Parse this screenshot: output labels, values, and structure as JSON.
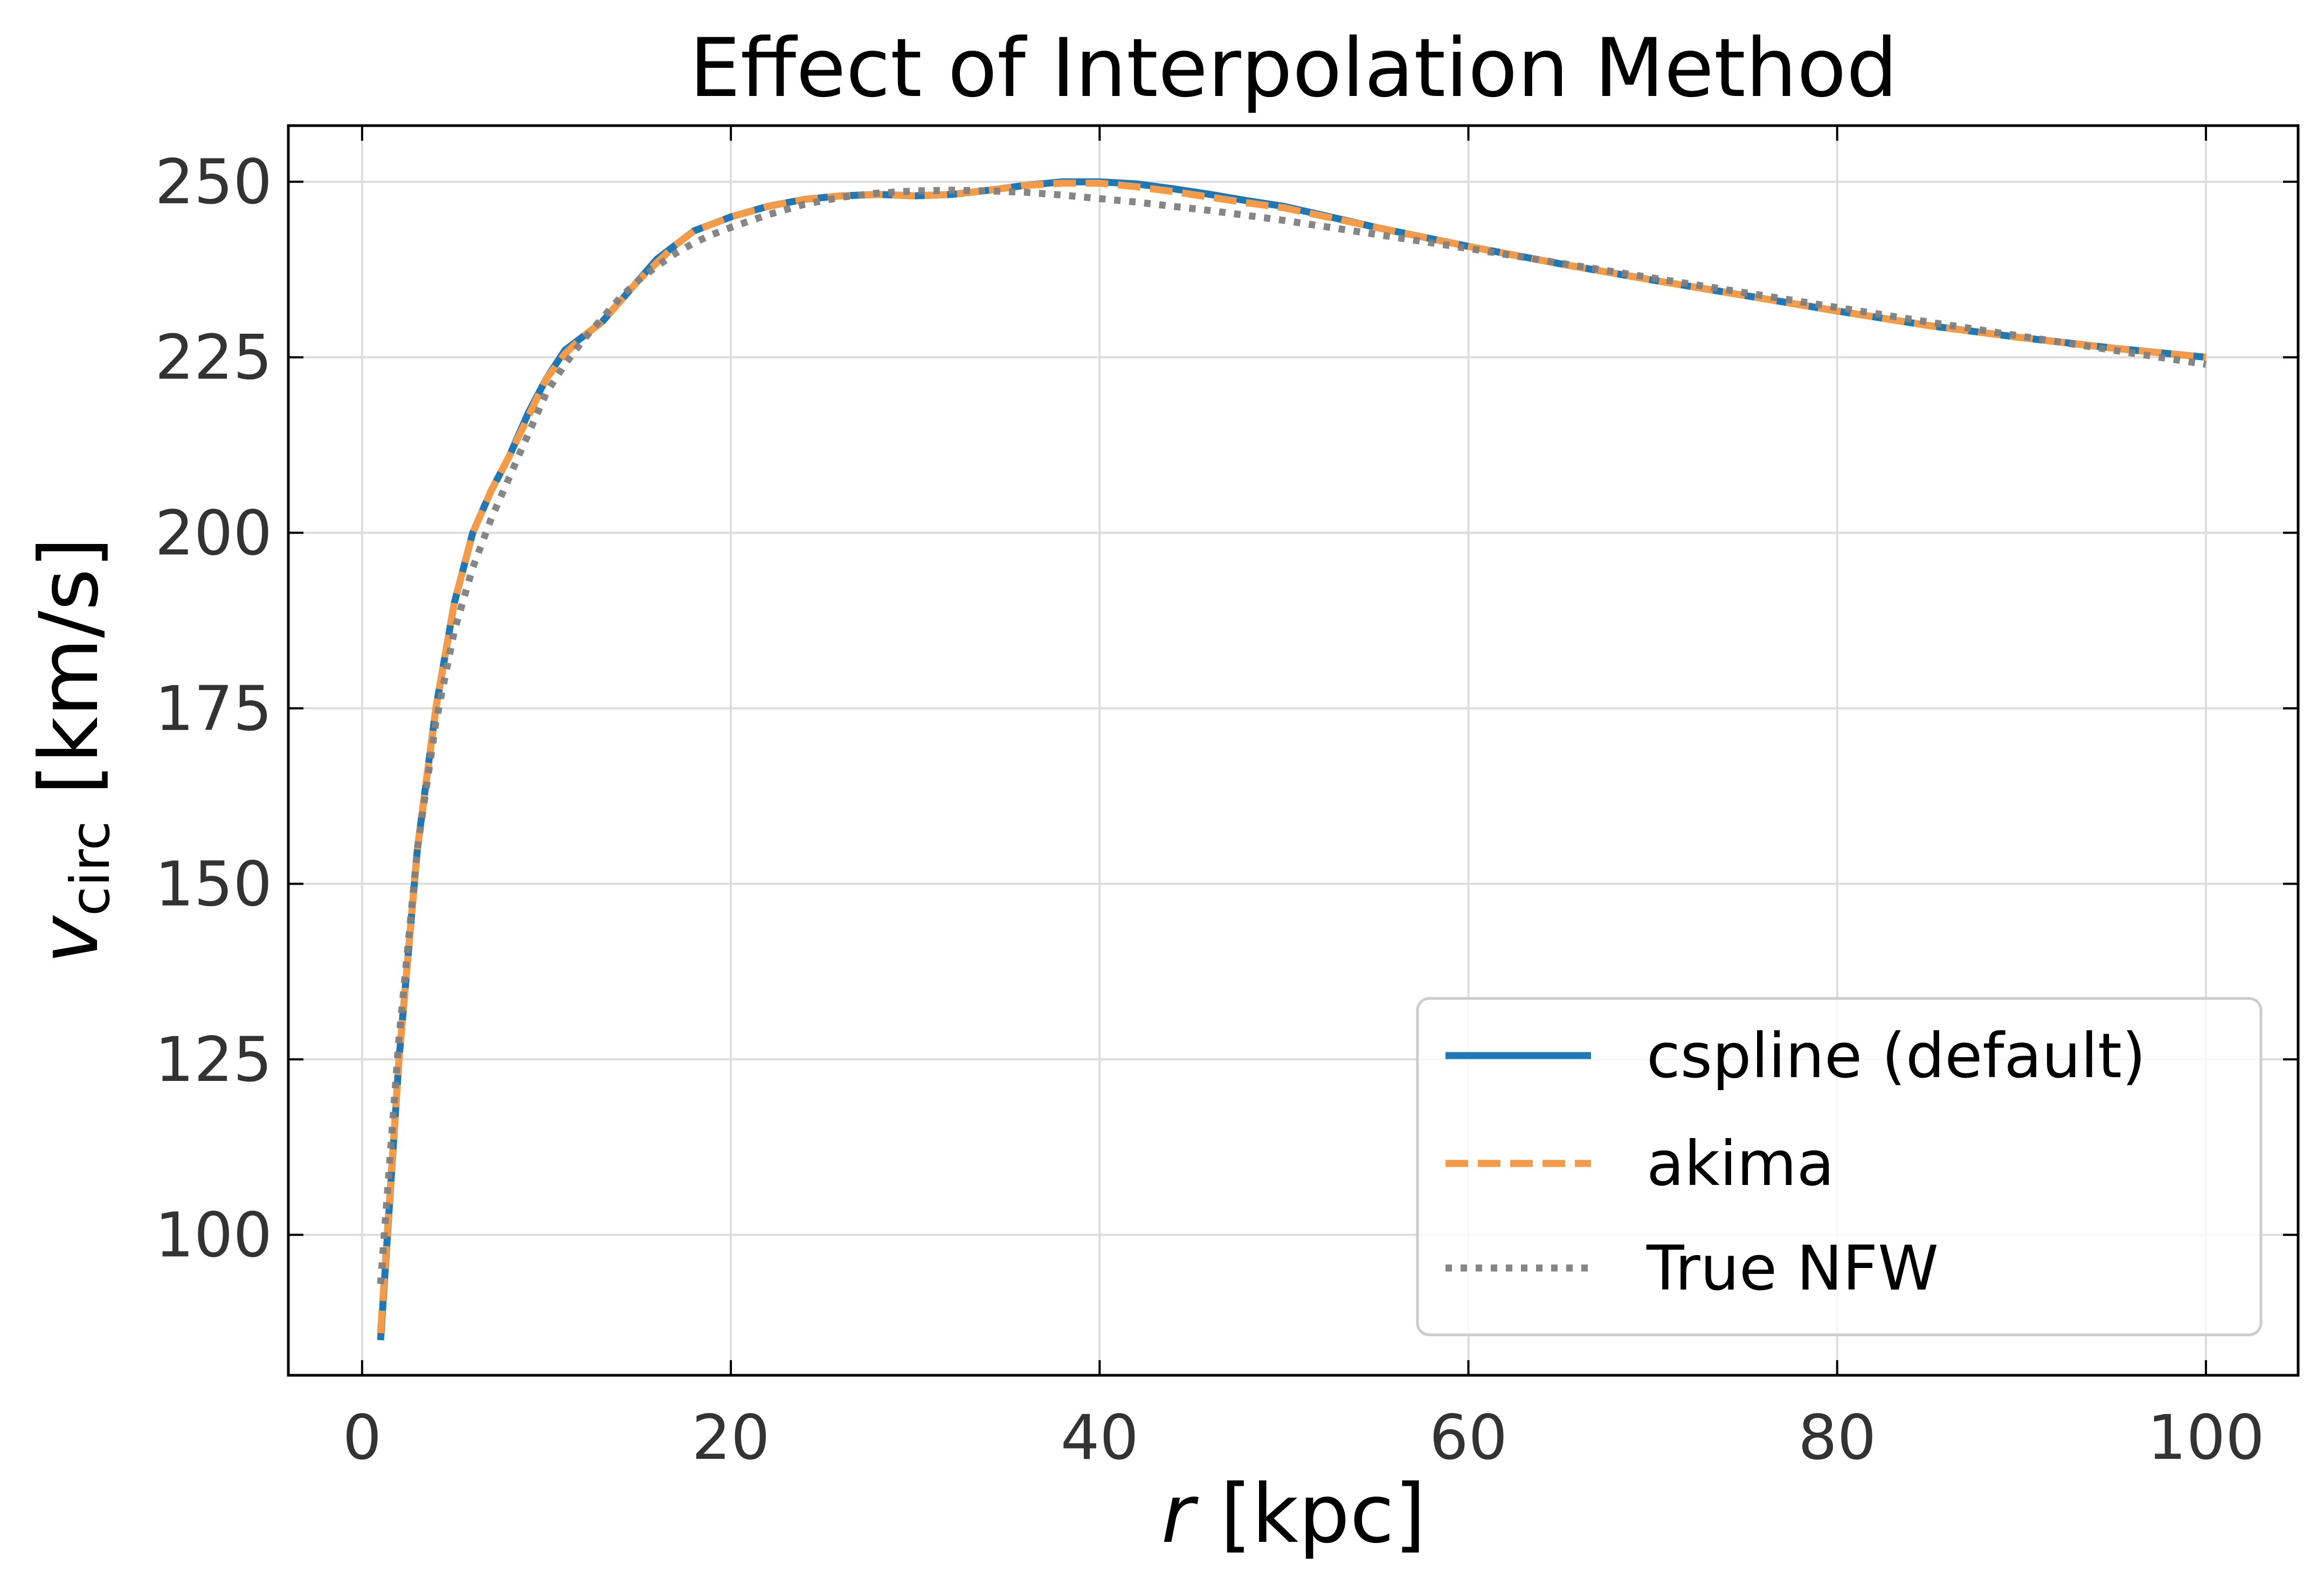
{
  "chart_data": {
    "type": "line",
    "title": "Effect of Interpolation Method",
    "xlabel": {
      "var": "r",
      "unit": " [kpc]"
    },
    "ylabel": {
      "var": "v",
      "sub": "circ",
      "unit": " [km/s]"
    },
    "xlim": [
      -4,
      105
    ],
    "ylim": [
      80,
      258
    ],
    "xticks": [
      0,
      20,
      40,
      60,
      80,
      100
    ],
    "yticks": [
      100,
      125,
      150,
      175,
      200,
      225,
      250
    ],
    "grid": true,
    "legend_position": "lower-right",
    "series": [
      {
        "name": "cspline (default)",
        "color": "#1f77b4",
        "style": "solid",
        "x": [
          1,
          2,
          3,
          4,
          5,
          6,
          7,
          8,
          9,
          10,
          11,
          12,
          13,
          14,
          15,
          16,
          17,
          18,
          19,
          20,
          22,
          24,
          26,
          28,
          30,
          32,
          34,
          36,
          38,
          40,
          42,
          44,
          46,
          48,
          50,
          55,
          60,
          65,
          70,
          75,
          80,
          85,
          90,
          95,
          100
        ],
        "y": [
          85,
          125,
          155,
          175,
          190,
          200,
          206,
          211,
          217,
          222,
          226,
          228,
          230,
          233,
          236,
          239,
          241,
          243,
          244,
          245,
          246.5,
          247.5,
          248,
          248.2,
          248,
          248.2,
          248.8,
          249.5,
          250,
          250,
          249.7,
          249,
          248.2,
          247.3,
          246.5,
          243.5,
          240.8,
          238.3,
          236,
          233.8,
          231.6,
          229.5,
          227.8,
          226.3,
          225
        ]
      },
      {
        "name": "akima",
        "color": "#f39b48",
        "style": "dashed",
        "x": [
          1,
          2,
          3,
          4,
          5,
          6,
          7,
          8,
          9,
          10,
          11,
          12,
          13,
          14,
          15,
          16,
          17,
          18,
          19,
          20,
          22,
          24,
          26,
          28,
          30,
          32,
          34,
          36,
          38,
          40,
          42,
          44,
          46,
          48,
          50,
          55,
          60,
          65,
          70,
          75,
          80,
          85,
          90,
          95,
          100
        ],
        "y": [
          86,
          125,
          155,
          175,
          190,
          200,
          206,
          211,
          216.5,
          222,
          225.5,
          228,
          230,
          233,
          236,
          238.5,
          241,
          243,
          244,
          245,
          246.5,
          247.5,
          248,
          248.2,
          248,
          248.2,
          248.8,
          249.5,
          249.8,
          249.8,
          249.3,
          248.6,
          247.8,
          247,
          246.3,
          243.5,
          240.8,
          238.3,
          236,
          233.8,
          231.6,
          229.5,
          227.8,
          226.3,
          225
        ]
      },
      {
        "name": "True NFW",
        "color": "#7f7f7f",
        "style": "dotted",
        "x": [
          1,
          2,
          3,
          4,
          5,
          6,
          7,
          8,
          9,
          10,
          11,
          12,
          13,
          14,
          15,
          16,
          17,
          18,
          19,
          20,
          22,
          24,
          26,
          28,
          30,
          32,
          34,
          36,
          38,
          40,
          42,
          44,
          46,
          48,
          50,
          55,
          60,
          65,
          70,
          75,
          80,
          85,
          90,
          95,
          100
        ],
        "y": [
          93,
          128,
          155,
          173,
          186,
          195,
          202,
          208,
          214,
          220,
          224,
          227.5,
          230.5,
          233.5,
          236,
          238,
          239.8,
          241.3,
          242.5,
          243.5,
          245.3,
          246.8,
          247.8,
          248.4,
          248.7,
          248.8,
          248.7,
          248.5,
          248.1,
          247.6,
          247.1,
          246.5,
          245.9,
          245.2,
          244.5,
          242.5,
          240.5,
          238.4,
          236.3,
          234.2,
          232.1,
          230,
          228,
          226,
          224
        ]
      }
    ]
  }
}
